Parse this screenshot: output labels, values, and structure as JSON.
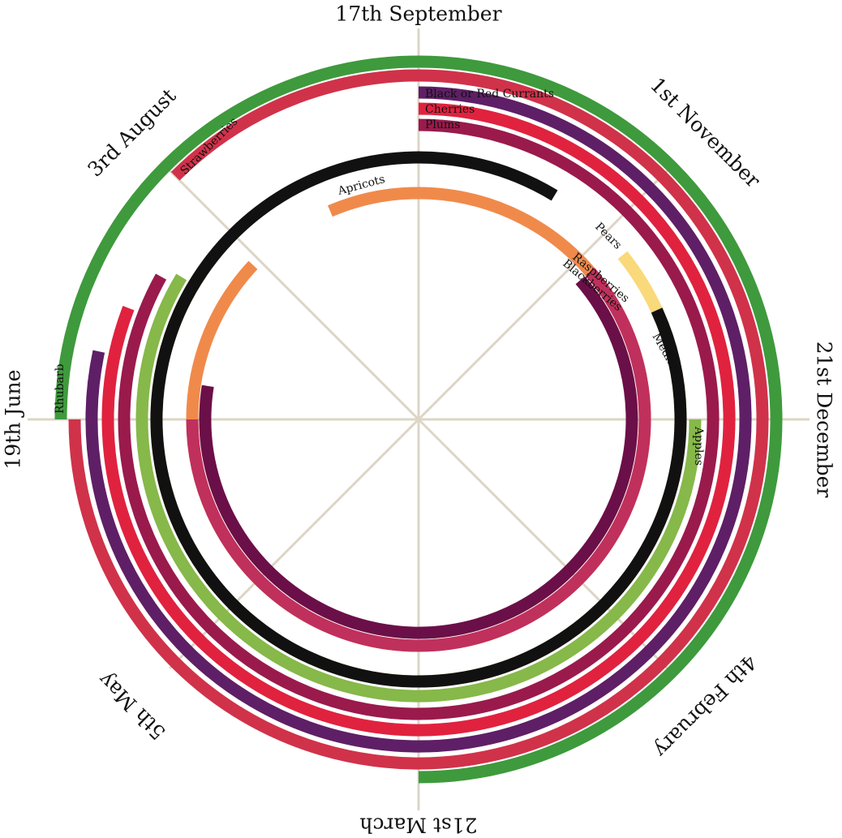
{
  "chart_data": {
    "type": "radial-arc",
    "title": "",
    "scale": {
      "unit": "day of year",
      "anchors": [
        {
          "label": "21st December",
          "angle_deg": 0
        },
        {
          "label": "17th September",
          "angle_deg": 90
        },
        {
          "label": "19th June",
          "angle_deg": 180
        },
        {
          "label": "21st March",
          "angle_deg": 270
        }
      ]
    },
    "axis_labels": [
      {
        "label": "21st December",
        "angle_deg": 0
      },
      {
        "label": "1st November",
        "angle_deg": 45
      },
      {
        "label": "17th September",
        "angle_deg": 90
      },
      {
        "label": "3rd August",
        "angle_deg": 135
      },
      {
        "label": "19th June",
        "angle_deg": 180
      },
      {
        "label": "5th May",
        "angle_deg": 225
      },
      {
        "label": "21st March",
        "angle_deg": 270
      },
      {
        "label": "4th February",
        "angle_deg": 315
      }
    ],
    "grid": true,
    "series": [
      {
        "name": "Black or Red Currants",
        "start_date": "1st July",
        "end_date": "17th September",
        "color": "#5e1f66"
      },
      {
        "name": "Cherries",
        "start_date": "10th July",
        "end_date": "17th September",
        "color": "#e0223f"
      },
      {
        "name": "Plums",
        "start_date": "18th July",
        "end_date": "17th September",
        "color": "#9a1a4c"
      },
      {
        "name": "Strawberries",
        "start_date": "19th June",
        "end_date": "3rd August",
        "color": "#d0324a"
      },
      {
        "name": "Rhubarb",
        "start_date": "21st March",
        "end_date": "19th June",
        "color": "#3e9a3c"
      },
      {
        "name": "Apples",
        "start_date": "20th July",
        "end_date": "21st December",
        "color": "#86b84a"
      },
      {
        "name": "Pears",
        "start_date": "25th July",
        "end_date": "10th November",
        "color": "#f9d97a"
      },
      {
        "name": "Apricots",
        "start_date": "1st August",
        "end_date": "25th August",
        "color": "#f08a4b"
      },
      {
        "name": "Medlars",
        "start_date": "20th October",
        "end_date": "25th November",
        "color": "#111111"
      },
      {
        "name": "Raspberries",
        "start_date": "19th June",
        "end_date": "8th November",
        "color": "#c0305c"
      },
      {
        "name": "Blackberries",
        "start_date": "28th June",
        "end_date": "8th November",
        "color": "#6b0f48"
      }
    ]
  },
  "style": {
    "axis_color": "#ddd5c6",
    "band_width": 15
  }
}
